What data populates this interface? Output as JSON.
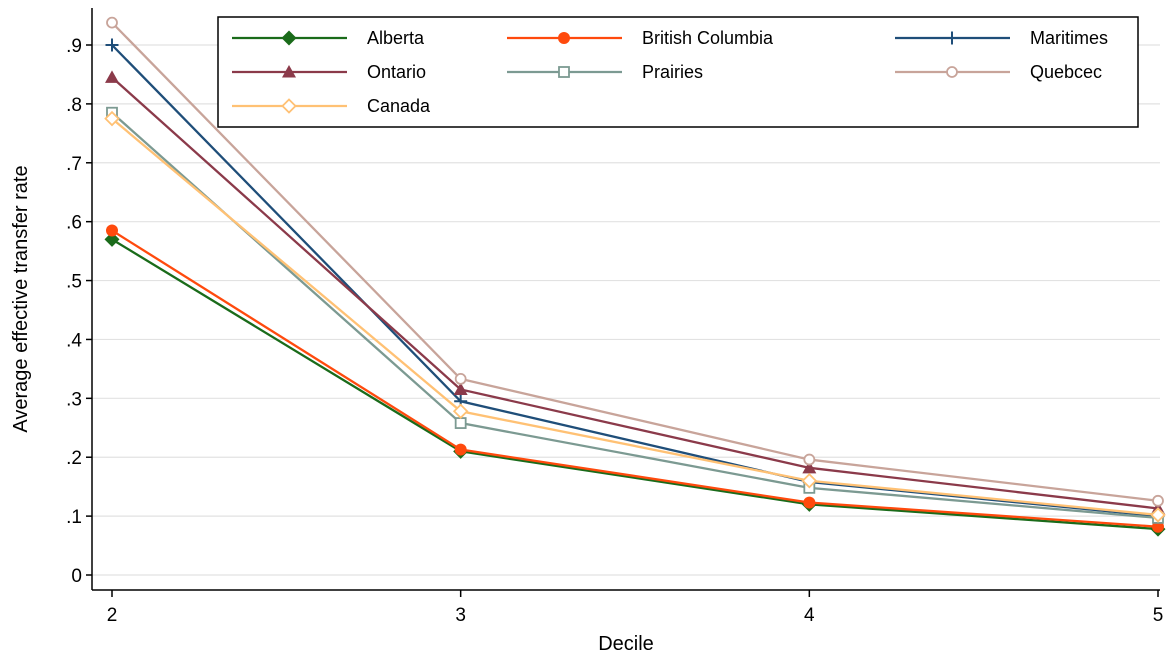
{
  "chart_data": {
    "type": "line",
    "title": "",
    "xlabel": "Decile",
    "ylabel": "Average effective transfer rate",
    "x": [
      2,
      3,
      4,
      5
    ],
    "x_tick_labels": [
      "2",
      "3",
      "4",
      "5"
    ],
    "xlim": [
      2,
      5
    ],
    "ylim": [
      0,
      0.95
    ],
    "y_ticks": [
      0,
      0.1,
      0.2,
      0.3,
      0.4,
      0.5,
      0.6,
      0.7,
      0.8,
      0.9
    ],
    "y_tick_labels": [
      "0",
      ".1",
      ".2",
      ".3",
      ".4",
      ".5",
      ".6",
      ".7",
      ".8",
      ".9"
    ],
    "grid": true,
    "legend_position": "top-inside",
    "series": [
      {
        "name": "Alberta",
        "values": [
          0.57,
          0.21,
          0.12,
          0.078
        ],
        "color": "#1a6b1a",
        "marker": "diamond-filled"
      },
      {
        "name": "British Columbia",
        "values": [
          0.585,
          0.213,
          0.123,
          0.082
        ],
        "color": "#ff4a0d",
        "marker": "circle-filled"
      },
      {
        "name": "Maritimes",
        "values": [
          0.9,
          0.295,
          0.158,
          0.1
        ],
        "color": "#1f4e79",
        "marker": "plus"
      },
      {
        "name": "Ontario",
        "values": [
          0.845,
          0.315,
          0.182,
          0.113
        ],
        "color": "#8b3a4a",
        "marker": "triangle-filled"
      },
      {
        "name": "Prairies",
        "values": [
          0.785,
          0.258,
          0.148,
          0.097
        ],
        "color": "#7c9a92",
        "marker": "square-hollow"
      },
      {
        "name": "Quebcec",
        "values": [
          0.938,
          0.333,
          0.196,
          0.126
        ],
        "color": "#c8a49a",
        "marker": "circle-hollow"
      },
      {
        "name": "Canada",
        "values": [
          0.775,
          0.278,
          0.16,
          0.102
        ],
        "color": "#ffc174",
        "marker": "diamond-hollow"
      }
    ]
  }
}
